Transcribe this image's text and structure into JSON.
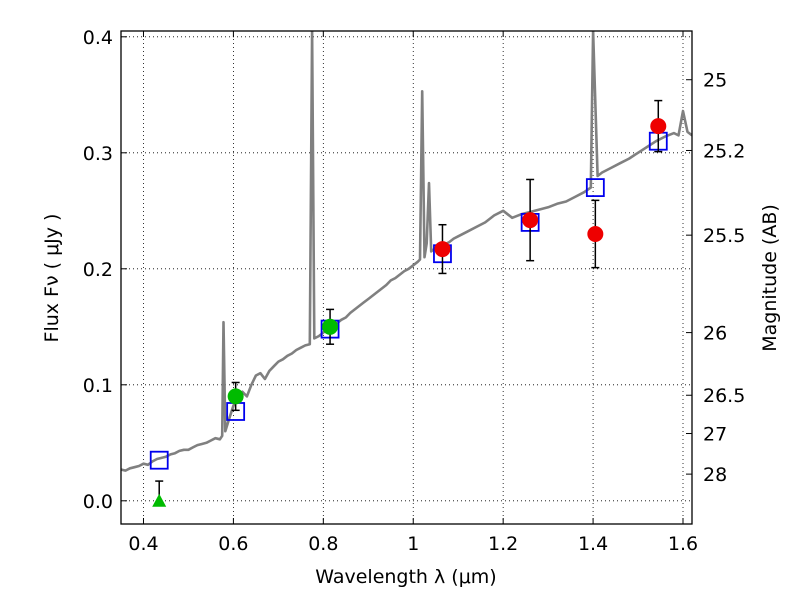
{
  "chart_data": {
    "type": "scatter",
    "xlabel": "Wavelength  λ (μm)",
    "ylabel": "Flux  Fν  ( μJy )",
    "y2label": "Magnitude (AB)",
    "xlim": [
      0.35,
      1.62
    ],
    "ylim": [
      -0.02,
      0.405
    ],
    "grid": true,
    "grid_style": "dotted",
    "x_ticks": [
      0.4,
      0.6,
      0.8,
      1.0,
      1.2,
      1.4,
      1.6
    ],
    "x_tick_labels": [
      "0.4",
      "0.6",
      "0.8",
      "1",
      "1.2",
      "1.4",
      "1.6"
    ],
    "y_ticks": [
      0.0,
      0.1,
      0.2,
      0.3,
      0.4
    ],
    "y_tick_labels": [
      "0.0",
      "0.1",
      "0.2",
      "0.3",
      "0.4"
    ],
    "y2_ticks": [
      {
        "label": "25",
        "flux": 0.363
      },
      {
        "label": "25.2",
        "flux": 0.302
      },
      {
        "label": "25.5",
        "flux": 0.229
      },
      {
        "label": "26",
        "flux": 0.145
      },
      {
        "label": "26.5",
        "flux": 0.091
      },
      {
        "label": "27",
        "flux": 0.058
      },
      {
        "label": "28",
        "flux": 0.023
      }
    ],
    "colors": {
      "spectrum": "#808080",
      "model_box": "#0000ee",
      "red_points": "#ee0000",
      "green_points": "#00bb00",
      "errorbar": "#000000"
    },
    "series": [
      {
        "kind": "line",
        "points": [
          [
            0.35,
            0.027
          ],
          [
            0.36,
            0.026
          ],
          [
            0.37,
            0.028
          ],
          [
            0.38,
            0.029
          ],
          [
            0.39,
            0.03
          ],
          [
            0.4,
            0.032
          ],
          [
            0.41,
            0.031
          ],
          [
            0.42,
            0.034
          ],
          [
            0.43,
            0.036
          ],
          [
            0.44,
            0.037
          ],
          [
            0.45,
            0.038
          ],
          [
            0.46,
            0.04
          ],
          [
            0.47,
            0.041
          ],
          [
            0.48,
            0.043
          ],
          [
            0.49,
            0.044
          ],
          [
            0.5,
            0.044
          ],
          [
            0.51,
            0.046
          ],
          [
            0.52,
            0.048
          ],
          [
            0.53,
            0.049
          ],
          [
            0.54,
            0.05
          ],
          [
            0.55,
            0.052
          ],
          [
            0.56,
            0.054
          ],
          [
            0.57,
            0.053
          ],
          [
            0.575,
            0.056
          ],
          [
            0.578,
            0.154
          ],
          [
            0.582,
            0.06
          ],
          [
            0.59,
            0.07
          ],
          [
            0.6,
            0.082
          ],
          [
            0.61,
            0.09
          ],
          [
            0.62,
            0.094
          ],
          [
            0.63,
            0.09
          ],
          [
            0.64,
            0.1
          ],
          [
            0.65,
            0.108
          ],
          [
            0.66,
            0.11
          ],
          [
            0.67,
            0.105
          ],
          [
            0.68,
            0.112
          ],
          [
            0.69,
            0.116
          ],
          [
            0.7,
            0.12
          ],
          [
            0.71,
            0.122
          ],
          [
            0.72,
            0.125
          ],
          [
            0.73,
            0.127
          ],
          [
            0.74,
            0.13
          ],
          [
            0.75,
            0.132
          ],
          [
            0.76,
            0.134
          ],
          [
            0.77,
            0.135
          ],
          [
            0.775,
            0.405
          ],
          [
            0.78,
            0.14
          ],
          [
            0.79,
            0.142
          ],
          [
            0.8,
            0.145
          ],
          [
            0.81,
            0.148
          ],
          [
            0.82,
            0.15
          ],
          [
            0.83,
            0.153
          ],
          [
            0.84,
            0.156
          ],
          [
            0.85,
            0.158
          ],
          [
            0.86,
            0.162
          ],
          [
            0.87,
            0.165
          ],
          [
            0.88,
            0.168
          ],
          [
            0.89,
            0.171
          ],
          [
            0.9,
            0.174
          ],
          [
            0.91,
            0.177
          ],
          [
            0.92,
            0.18
          ],
          [
            0.93,
            0.183
          ],
          [
            0.94,
            0.186
          ],
          [
            0.95,
            0.19
          ],
          [
            0.96,
            0.192
          ],
          [
            0.97,
            0.195
          ],
          [
            0.98,
            0.198
          ],
          [
            0.99,
            0.2
          ],
          [
            1.0,
            0.203
          ],
          [
            1.01,
            0.206
          ],
          [
            1.015,
            0.208
          ],
          [
            1.02,
            0.353
          ],
          [
            1.025,
            0.21
          ],
          [
            1.03,
            0.222
          ],
          [
            1.035,
            0.274
          ],
          [
            1.04,
            0.215
          ],
          [
            1.05,
            0.218
          ],
          [
            1.06,
            0.22
          ],
          [
            1.07,
            0.221
          ],
          [
            1.08,
            0.223
          ],
          [
            1.09,
            0.226
          ],
          [
            1.1,
            0.228
          ],
          [
            1.12,
            0.232
          ],
          [
            1.14,
            0.236
          ],
          [
            1.16,
            0.24
          ],
          [
            1.18,
            0.246
          ],
          [
            1.2,
            0.25
          ],
          [
            1.22,
            0.244
          ],
          [
            1.24,
            0.247
          ],
          [
            1.26,
            0.249
          ],
          [
            1.28,
            0.251
          ],
          [
            1.3,
            0.253
          ],
          [
            1.32,
            0.256
          ],
          [
            1.34,
            0.258
          ],
          [
            1.36,
            0.262
          ],
          [
            1.38,
            0.266
          ],
          [
            1.395,
            0.27
          ],
          [
            1.4,
            0.405
          ],
          [
            1.41,
            0.28
          ],
          [
            1.42,
            0.283
          ],
          [
            1.44,
            0.287
          ],
          [
            1.46,
            0.291
          ],
          [
            1.48,
            0.295
          ],
          [
            1.5,
            0.3
          ],
          [
            1.52,
            0.305
          ],
          [
            1.54,
            0.31
          ],
          [
            1.56,
            0.314
          ],
          [
            1.58,
            0.317
          ],
          [
            1.59,
            0.315
          ],
          [
            1.6,
            0.336
          ],
          [
            1.61,
            0.318
          ],
          [
            1.62,
            0.315
          ]
        ]
      },
      {
        "kind": "model_boxes",
        "points": [
          [
            0.435,
            0.035
          ],
          [
            0.605,
            0.077
          ],
          [
            0.815,
            0.148
          ],
          [
            1.065,
            0.213
          ],
          [
            1.26,
            0.24
          ],
          [
            1.405,
            0.27
          ],
          [
            1.545,
            0.31
          ]
        ]
      },
      {
        "kind": "red_points",
        "points": [
          {
            "x": 1.065,
            "y": 0.217,
            "err": 0.021
          },
          {
            "x": 1.26,
            "y": 0.242,
            "err": 0.035
          },
          {
            "x": 1.405,
            "y": 0.23,
            "err": 0.029
          },
          {
            "x": 1.545,
            "y": 0.323,
            "err": 0.022
          }
        ]
      },
      {
        "kind": "green_points",
        "points": [
          {
            "x": 0.605,
            "y": 0.09,
            "err": 0.012
          },
          {
            "x": 0.815,
            "y": 0.15,
            "err": 0.015
          }
        ]
      },
      {
        "kind": "upper_limit",
        "points": [
          {
            "x": 0.435,
            "y": 0.0,
            "err_top": 0.017
          }
        ]
      }
    ]
  }
}
